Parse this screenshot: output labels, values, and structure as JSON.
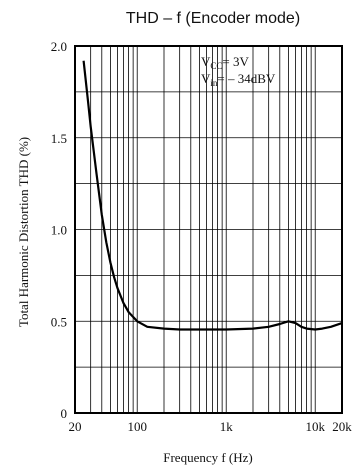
{
  "chart_data": {
    "type": "line",
    "title": "THD – f (Encoder mode)",
    "xlabel": "Frequency f (Hz)",
    "ylabel": "Total Harmonic Distortion THD (%)",
    "xscale": "log",
    "xlim": [
      20,
      20000
    ],
    "ylim": [
      0,
      2.0
    ],
    "grid": true,
    "x_ticks": [
      {
        "value": 20,
        "label": "20"
      },
      {
        "value": 100,
        "label": "100"
      },
      {
        "value": 1000,
        "label": "1k"
      },
      {
        "value": 10000,
        "label": "10k"
      },
      {
        "value": 20000,
        "label": "20k"
      }
    ],
    "y_ticks": [
      {
        "value": 0,
        "label": "0"
      },
      {
        "value": 0.5,
        "label": "0.5"
      },
      {
        "value": 1.0,
        "label": "1.0"
      },
      {
        "value": 1.5,
        "label": "1.5"
      },
      {
        "value": 2.0,
        "label": "2.0"
      }
    ],
    "annotations": {
      "vcc": {
        "main": "V",
        "sub": "CC",
        "rest": "= 3V"
      },
      "vin": {
        "main": "V",
        "sub": "in",
        "rest": "= – 34dBV"
      }
    },
    "series": [
      {
        "x": [
          25,
          28,
          30,
          35,
          40,
          45,
          50,
          55,
          60,
          70,
          80,
          100,
          130,
          200,
          300,
          500,
          1000,
          2000,
          3000,
          4000,
          5000,
          6000,
          7000,
          8000,
          10000,
          12000,
          15000,
          20000
        ],
        "y": [
          1.92,
          1.7,
          1.56,
          1.3,
          1.08,
          0.93,
          0.82,
          0.74,
          0.68,
          0.6,
          0.55,
          0.5,
          0.47,
          0.46,
          0.455,
          0.455,
          0.455,
          0.46,
          0.47,
          0.485,
          0.5,
          0.49,
          0.47,
          0.46,
          0.455,
          0.46,
          0.47,
          0.49
        ]
      }
    ]
  }
}
